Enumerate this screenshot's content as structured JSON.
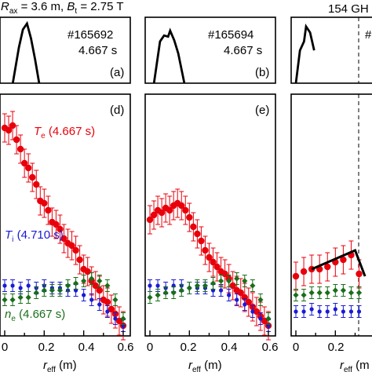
{
  "header": {
    "rax_prefix": "R",
    "rax_sub": "ax",
    "rax_value": " = 3.6 m, ",
    "bt_prefix": "B",
    "bt_sub": "t",
    "bt_value": " = 2.75 T",
    "freq": "154 GH"
  },
  "x_axis": {
    "label_prefix": "r",
    "label_sub": "eff",
    "label_unit": " (m)",
    "label_unit_right": " (m",
    "ticks": [
      "0",
      "0.2",
      "0.4",
      "0.6"
    ]
  },
  "panels_top": [
    {
      "letter": "(a)",
      "shot": "#165692",
      "time": "4.667 s"
    },
    {
      "letter": "(b)",
      "shot": "#165694",
      "time": "4.667 s"
    },
    {
      "letter": "",
      "shot": "#",
      "time": ""
    }
  ],
  "panels_bottom": [
    {
      "letter": "(d)"
    },
    {
      "letter": "(e)"
    },
    {
      "letter": ""
    }
  ],
  "legend": {
    "te_sym": "T",
    "te_sub": "e",
    "te_time": " (4.667 s)",
    "ti_sym": "T",
    "ti_sub": "i",
    "ti_time": " (4.710 s)",
    "ne_sym": "n",
    "ne_sub": "e",
    "ne_time": " (4.667 s)"
  },
  "colors": {
    "te": "#e8000b",
    "ti": "#1a1ad6",
    "ne": "#1a6e1a",
    "line": "#000000"
  },
  "chart_data": [
    {
      "type": "line",
      "panel": "a",
      "x": [
        0.04,
        0.07,
        0.09,
        0.11,
        0.13,
        0.15,
        0.17
      ],
      "y": [
        0.0,
        0.6,
        0.9,
        1.0,
        0.75,
        0.4,
        0.0
      ]
    },
    {
      "type": "line",
      "panel": "b",
      "x": [
        0.02,
        0.05,
        0.07,
        0.09,
        0.1,
        0.12,
        0.14,
        0.17
      ],
      "y": [
        0.0,
        0.7,
        0.8,
        0.78,
        0.88,
        0.72,
        0.5,
        0.0
      ]
    },
    {
      "type": "scatter",
      "panel": "d",
      "xlim": [
        0,
        0.62
      ],
      "series": [
        {
          "name": "Te",
          "x": [
            0.0,
            0.02,
            0.04,
            0.06,
            0.08,
            0.1,
            0.12,
            0.14,
            0.16,
            0.18,
            0.2,
            0.22,
            0.24,
            0.26,
            0.28,
            0.3,
            0.32,
            0.34,
            0.36,
            0.38,
            0.4,
            0.42,
            0.44,
            0.46,
            0.48,
            0.5,
            0.52,
            0.54,
            0.56,
            0.58,
            0.6
          ],
          "y": [
            0.87,
            0.86,
            0.88,
            0.82,
            0.78,
            0.72,
            0.7,
            0.66,
            0.63,
            0.56,
            0.55,
            0.52,
            0.47,
            0.46,
            0.44,
            0.4,
            0.38,
            0.37,
            0.35,
            0.31,
            0.27,
            0.26,
            0.22,
            0.2,
            0.18,
            0.14,
            0.13,
            0.1,
            0.08,
            0.05,
            0.03
          ]
        },
        {
          "name": "Ti",
          "x": [
            0.0,
            0.04,
            0.08,
            0.12,
            0.16,
            0.2,
            0.24,
            0.28,
            0.32,
            0.36,
            0.4,
            0.44,
            0.48,
            0.52,
            0.56,
            0.6
          ],
          "y": [
            0.2,
            0.2,
            0.19,
            0.2,
            0.19,
            0.2,
            0.19,
            0.19,
            0.18,
            0.18,
            0.16,
            0.14,
            0.12,
            0.09,
            0.06,
            0.03
          ]
        },
        {
          "name": "ne",
          "x": [
            0.0,
            0.04,
            0.08,
            0.12,
            0.16,
            0.2,
            0.24,
            0.28,
            0.32,
            0.36,
            0.4,
            0.44,
            0.48,
            0.52,
            0.56,
            0.6
          ],
          "y": [
            0.14,
            0.14,
            0.15,
            0.15,
            0.17,
            0.18,
            0.18,
            0.18,
            0.2,
            0.21,
            0.22,
            0.23,
            0.22,
            0.2,
            0.14,
            0.06
          ]
        }
      ]
    },
    {
      "type": "scatter",
      "panel": "e",
      "xlim": [
        0,
        0.62
      ],
      "series": [
        {
          "name": "Te",
          "x": [
            0.0,
            0.02,
            0.04,
            0.06,
            0.08,
            0.1,
            0.12,
            0.14,
            0.16,
            0.18,
            0.2,
            0.22,
            0.24,
            0.26,
            0.28,
            0.3,
            0.32,
            0.34,
            0.36,
            0.38,
            0.4,
            0.42,
            0.44,
            0.46,
            0.48,
            0.5,
            0.52,
            0.54,
            0.56,
            0.58,
            0.6
          ],
          "y": [
            0.48,
            0.5,
            0.52,
            0.51,
            0.53,
            0.52,
            0.54,
            0.55,
            0.54,
            0.52,
            0.49,
            0.45,
            0.42,
            0.39,
            0.35,
            0.32,
            0.3,
            0.28,
            0.26,
            0.25,
            0.23,
            0.2,
            0.18,
            0.17,
            0.15,
            0.13,
            0.11,
            0.09,
            0.07,
            0.05,
            0.03
          ]
        },
        {
          "name": "Ti",
          "x": [
            0.0,
            0.04,
            0.08,
            0.12,
            0.16,
            0.2,
            0.24,
            0.28,
            0.32,
            0.36,
            0.4,
            0.44,
            0.48,
            0.52,
            0.56,
            0.6
          ],
          "y": [
            0.2,
            0.2,
            0.19,
            0.2,
            0.2,
            0.19,
            0.19,
            0.19,
            0.18,
            0.18,
            0.16,
            0.14,
            0.12,
            0.09,
            0.06,
            0.03
          ]
        },
        {
          "name": "ne",
          "x": [
            0.0,
            0.04,
            0.08,
            0.12,
            0.16,
            0.2,
            0.24,
            0.28,
            0.32,
            0.36,
            0.4,
            0.44,
            0.48,
            0.52,
            0.56,
            0.6
          ],
          "y": [
            0.15,
            0.16,
            0.17,
            0.17,
            0.18,
            0.19,
            0.2,
            0.2,
            0.21,
            0.22,
            0.22,
            0.23,
            0.22,
            0.2,
            0.14,
            0.06
          ]
        }
      ]
    },
    {
      "type": "line",
      "panel": "c",
      "x": [
        0.0,
        0.02,
        0.04,
        0.05,
        0.07,
        0.09
      ],
      "y": [
        0.0,
        0.55,
        0.7,
        0.95,
        0.85,
        0.55
      ]
    },
    {
      "type": "scatter",
      "panel": "f",
      "xlim": [
        0,
        0.62
      ],
      "series": [
        {
          "name": "Te",
          "x": [
            0.0,
            0.04,
            0.08,
            0.12,
            0.16,
            0.2,
            0.24,
            0.28,
            0.32
          ],
          "y": [
            0.24,
            0.26,
            0.27,
            0.27,
            0.28,
            0.3,
            0.31,
            0.33,
            0.25
          ]
        },
        {
          "name": "Ti",
          "x": [
            0.0,
            0.04,
            0.08,
            0.12,
            0.16,
            0.2,
            0.24,
            0.28,
            0.32
          ],
          "y": [
            0.09,
            0.09,
            0.1,
            0.09,
            0.09,
            0.1,
            0.09,
            0.09,
            0.09
          ]
        },
        {
          "name": "ne",
          "x": [
            0.0,
            0.04,
            0.08,
            0.12,
            0.16,
            0.2,
            0.24,
            0.28,
            0.32
          ],
          "y": [
            0.16,
            0.16,
            0.17,
            0.17,
            0.17,
            0.18,
            0.18,
            0.17,
            0.17
          ]
        },
        {
          "name": "fit",
          "x": [
            0.08,
            0.3,
            0.35
          ],
          "y": [
            0.27,
            0.35,
            0.24
          ]
        }
      ]
    }
  ]
}
